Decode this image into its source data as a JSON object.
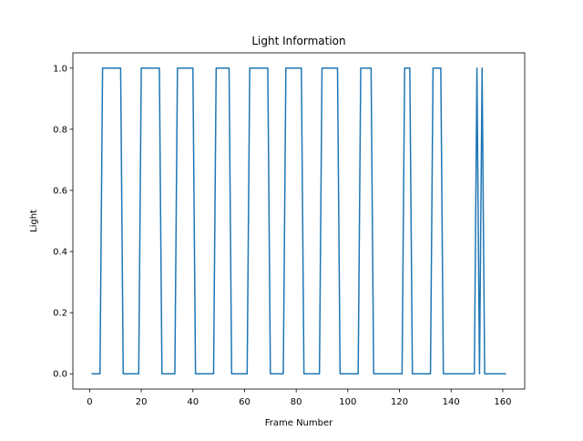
{
  "chart_data": {
    "type": "line",
    "title": "Light Information",
    "xlabel": "Frame Number",
    "ylabel": "Light",
    "xlim": [
      -6.5,
      168.5
    ],
    "ylim": [
      -0.05,
      1.05
    ],
    "x_ticks": [
      0,
      20,
      40,
      60,
      80,
      100,
      120,
      140,
      160
    ],
    "y_ticks": [
      0.0,
      0.2,
      0.4,
      0.6,
      0.8,
      1.0
    ],
    "x_tick_labels": [
      "0",
      "20",
      "40",
      "60",
      "80",
      "100",
      "120",
      "140",
      "160"
    ],
    "y_tick_labels": [
      "0.0",
      "0.2",
      "0.4",
      "0.6",
      "0.8",
      "1.0"
    ],
    "grid": false,
    "line_color": "#1f77b4",
    "series": [
      {
        "x": [
          1,
          4,
          5,
          12,
          13,
          19,
          20,
          27,
          28,
          33,
          34,
          40,
          41,
          48,
          49,
          54,
          55,
          61,
          62,
          69,
          70,
          75,
          76,
          82,
          83,
          89,
          90,
          96,
          97,
          104,
          105,
          109,
          110,
          121,
          122,
          124,
          125,
          132,
          133,
          136,
          137,
          149,
          150,
          151,
          152,
          153,
          161
        ],
        "y": [
          0,
          0,
          1,
          1,
          0,
          0,
          1,
          1,
          0,
          0,
          1,
          1,
          0,
          0,
          1,
          1,
          0,
          0,
          1,
          1,
          0,
          0,
          1,
          1,
          0,
          0,
          1,
          1,
          0,
          0,
          1,
          1,
          0,
          0,
          1,
          1,
          0,
          0,
          1,
          1,
          0,
          0,
          1,
          0,
          1,
          0,
          0
        ]
      }
    ]
  }
}
